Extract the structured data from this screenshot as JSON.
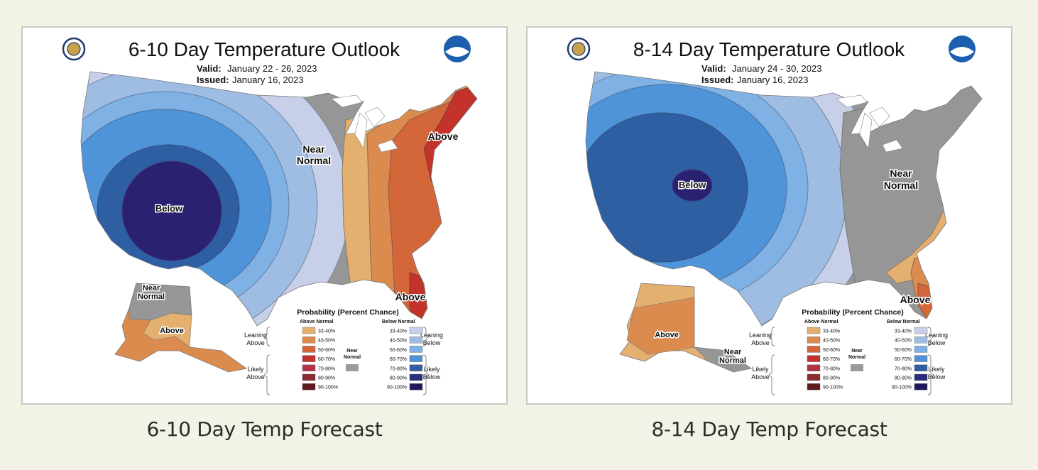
{
  "maps": [
    {
      "title": "6-10 Day Temperature Outlook",
      "valid_label": "Valid:",
      "valid_value": "January 22 - 26, 2023",
      "issued_label": "Issued:",
      "issued_value": "January 16, 2023",
      "caption": "6-10 Day Temp Forecast",
      "regions": {
        "below": "Below",
        "near_normal_1": "Near",
        "near_normal_2": "Normal",
        "above_ne": "Above",
        "above_fl": "Above",
        "ak_near_1": "Near",
        "ak_near_2": "Normal",
        "ak_above": "Above"
      }
    },
    {
      "title": "8-14 Day Temperature Outlook",
      "valid_label": "Valid:",
      "valid_value": "January 24 - 30, 2023",
      "issued_label": "Issued:",
      "issued_value": "January 16, 2023",
      "caption": "8-14 Day Temp Forecast",
      "regions": {
        "below": "Below",
        "near_normal_1": "Near",
        "near_normal_2": "Normal",
        "above_fl": "Above",
        "ak_above": "Above",
        "ak_near_1": "Near",
        "ak_near_2": "Normal"
      }
    }
  ],
  "legend": {
    "title": "Probability (Percent Chance)",
    "above_header": "Above Normal",
    "below_header": "Below Normal",
    "near_1": "Near",
    "near_2": "Normal",
    "leaning_1": "Leaning",
    "above_word": "Above",
    "below_word": "Below",
    "likely": "Likely",
    "ranges": [
      "33-40%",
      "40-50%",
      "50-60%",
      "60-70%",
      "70-80%",
      "80-90%",
      "90-100%"
    ],
    "above_colors": [
      "#e3b070",
      "#dc8b4e",
      "#d4673a",
      "#c4322c",
      "#b33344",
      "#8a2b31",
      "#5c1a1c"
    ],
    "below_colors": [
      "#c7d0e8",
      "#9fbde3",
      "#7fb1e4",
      "#4f93d8",
      "#2e5fa3",
      "#2a2e7d",
      "#201a5c"
    ],
    "near_color": "#9a9a9a"
  },
  "colors": {
    "near_gray": "#969696"
  }
}
